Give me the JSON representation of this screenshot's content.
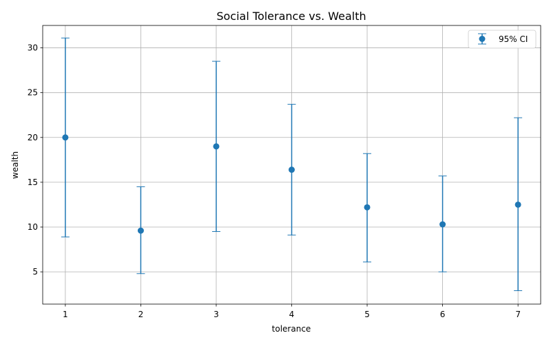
{
  "chart_data": {
    "type": "errorbar",
    "title": "Social Tolerance vs. Wealth",
    "xlabel": "tolerance",
    "ylabel": "wealth",
    "xlim": [
      0.7,
      7.3
    ],
    "ylim": [
      1.4,
      32.5
    ],
    "x_ticks": [
      "1",
      "2",
      "3",
      "4",
      "5",
      "6",
      "7"
    ],
    "y_ticks": [
      "5",
      "10",
      "15",
      "20",
      "25",
      "30"
    ],
    "grid": true,
    "legend": {
      "placement": "top-right",
      "label": "95% CI"
    },
    "color": "#1f77b4",
    "points": [
      {
        "x": 1,
        "y": 20.0,
        "lower": 8.9,
        "upper": 31.1
      },
      {
        "x": 2,
        "y": 9.6,
        "lower": 4.8,
        "upper": 14.5
      },
      {
        "x": 3,
        "y": 19.0,
        "lower": 9.5,
        "upper": 28.5
      },
      {
        "x": 4,
        "y": 16.4,
        "lower": 9.1,
        "upper": 23.7
      },
      {
        "x": 5,
        "y": 12.2,
        "lower": 6.1,
        "upper": 18.2
      },
      {
        "x": 6,
        "y": 10.3,
        "lower": 5.0,
        "upper": 15.7
      },
      {
        "x": 7,
        "y": 12.5,
        "lower": 2.9,
        "upper": 22.2
      }
    ]
  }
}
